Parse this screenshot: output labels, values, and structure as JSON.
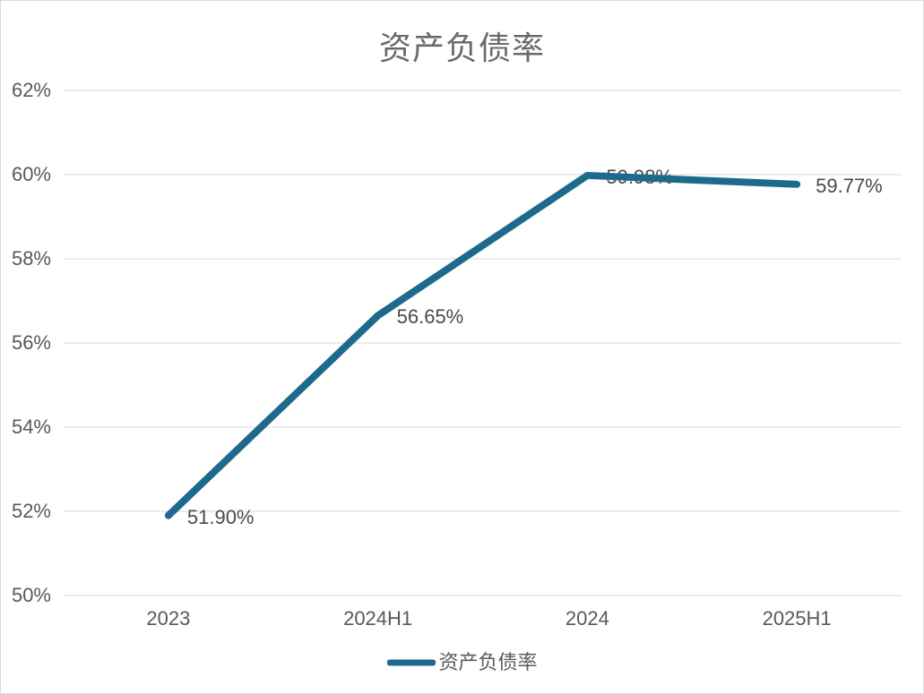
{
  "colors": {
    "background": "#ffffff",
    "border": "#d9d9d9",
    "gridline": "#d9d9d9",
    "axis_text": "#595959",
    "data_label_text": "#4a4a4a",
    "title_text": "#696969",
    "series_line": "#1e6a8d"
  },
  "chart_data": {
    "type": "line",
    "title": "资产负债率",
    "xlabel": "",
    "ylabel": "",
    "categories": [
      "2023",
      "2024H1",
      "2024",
      "2025H1"
    ],
    "series": [
      {
        "name": "资产负债率",
        "values": [
          51.9,
          56.65,
          59.98,
          59.77
        ],
        "data_labels": [
          "51.90%",
          "56.65%",
          "59.98%",
          "59.77%"
        ],
        "color": "#1e6a8d"
      }
    ],
    "y_axis": {
      "min": 50,
      "max": 62,
      "step": 2,
      "tick_labels": [
        "50%",
        "52%",
        "54%",
        "56%",
        "58%",
        "60%",
        "62%"
      ]
    },
    "grid": true,
    "legend": {
      "position": "bottom",
      "entries": [
        {
          "label": "资产负债率",
          "color": "#1e6a8d"
        }
      ]
    }
  }
}
